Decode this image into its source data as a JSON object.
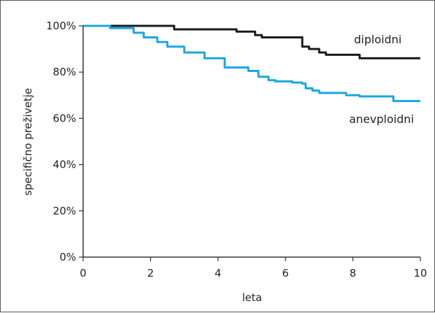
{
  "chart_data": {
    "type": "line",
    "title": "",
    "xlabel": "leta",
    "ylabel": "specifično preživetje",
    "xlim": [
      0,
      10
    ],
    "ylim": [
      0,
      100
    ],
    "x_ticks": [
      "0",
      "2",
      "4",
      "6",
      "8",
      "10"
    ],
    "y_ticks": [
      "0%",
      "20%",
      "40%",
      "60%",
      "80%",
      "100%"
    ],
    "grid": false,
    "legend": "none",
    "series": [
      {
        "name": "diploidni",
        "color": "#1a1a1a",
        "x": [
          0,
          2.7,
          4.55,
          5.1,
          5.3,
          6.5,
          6.7,
          7.0,
          7.2,
          8.2,
          9.2,
          10
        ],
        "y": [
          100,
          98.5,
          97.5,
          96,
          95,
          91,
          90,
          88.5,
          87.5,
          86,
          86,
          86
        ]
      },
      {
        "name": "anevploidni",
        "color": "#1aa6e0",
        "x": [
          0,
          0.8,
          1.5,
          1.8,
          2.2,
          2.5,
          3.0,
          3.6,
          4.2,
          4.9,
          5.2,
          5.5,
          5.7,
          6.2,
          6.5,
          6.6,
          6.8,
          7.0,
          7.8,
          8.2,
          9.2,
          10
        ],
        "y": [
          100,
          99,
          97,
          95,
          93,
          91,
          88.5,
          86,
          82,
          80.5,
          78,
          76.5,
          76,
          75.5,
          75,
          73,
          72,
          71,
          70,
          69.5,
          67.5,
          67.5
        ]
      }
    ]
  }
}
